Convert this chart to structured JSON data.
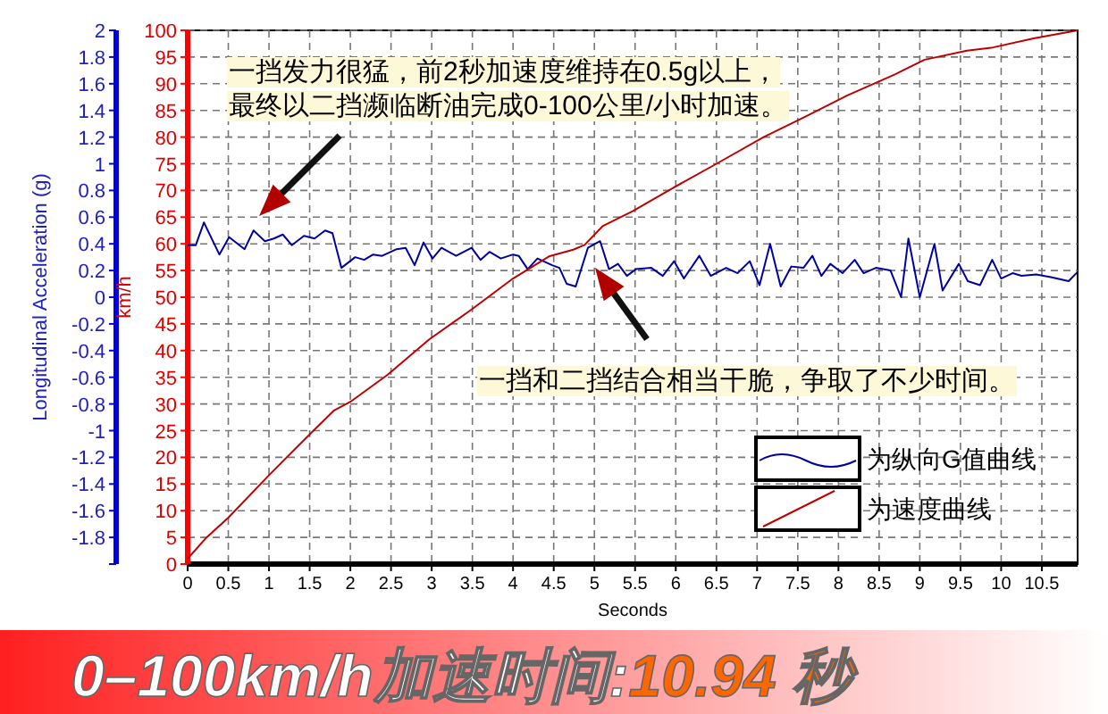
{
  "chart_data": {
    "type": "line",
    "title": "0–100km/h加速时间:*10.94 秒*",
    "xlabel": "Seconds",
    "ylabel": "Longitudinal Acceleration (g)",
    "y2label": "km/h",
    "xlim": [
      0,
      10.94
    ],
    "xticks": [
      0,
      0.5,
      1,
      1.5,
      2,
      2.5,
      3,
      3.5,
      4,
      4.5,
      5,
      5.5,
      6,
      6.5,
      7,
      7.5,
      8,
      8.5,
      9,
      9.5,
      10,
      10.5
    ],
    "ylim": [
      -2,
      2
    ],
    "yticks": [
      {
        "value": -2,
        "label": null
      },
      -1.8,
      -1.6,
      -1.4,
      -1.2,
      -1,
      -0.8,
      -0.6,
      -0.4,
      -0.2,
      0,
      0.2,
      0.4,
      0.6,
      0.8,
      1,
      1.2,
      1.4,
      1.6,
      1.8,
      2
    ],
    "y2lim": [
      0,
      100
    ],
    "y2ticks": [
      0,
      5,
      10,
      15,
      20,
      25,
      30,
      35,
      40,
      45,
      50,
      55,
      60,
      65,
      70,
      75,
      80,
      85,
      90,
      95,
      100
    ],
    "grid": true,
    "legend": "bottom right",
    "marker": "none",
    "line_style": "solid",
    "annotations": [
      "一挡发力很猛，前2秒加速度维持在0.5g以上，",
      "最终以二挡濒临断油完成0-100公里/小时加速。",
      "一挡和二挡结合相当干脆，争取了不少时间。"
    ],
    "series": [
      {
        "name": "为纵向G值曲线",
        "color": "#0000a0",
        "x": [
          0,
          0.1,
          0.2,
          0.39,
          0.51,
          0.7,
          0.81,
          0.95,
          1.06,
          1.17,
          1.28,
          1.43,
          1.56,
          1.69,
          1.78,
          1.89,
          2.06,
          2.17,
          2.28,
          2.39,
          2.57,
          2.68,
          2.79,
          2.9,
          3.01,
          3.12,
          3.3,
          3.49,
          3.6,
          3.71,
          3.85,
          4,
          4.07,
          4.18,
          4.3,
          4.48,
          4.57,
          4.66,
          4.77,
          4.92,
          5.07,
          5.18,
          5.29,
          5.4,
          5.51,
          5.7,
          5.84,
          5.98,
          6.1,
          6.29,
          6.43,
          6.62,
          6.76,
          6.91,
          7.03,
          7.16,
          7.29,
          7.42,
          7.57,
          7.68,
          7.79,
          7.9,
          8.05,
          8.2,
          8.31,
          8.46,
          8.64,
          8.77,
          8.86,
          9,
          9.18,
          9.28,
          9.48,
          9.59,
          9.74,
          9.89,
          10,
          10.14,
          10.25,
          10.43,
          10.61,
          10.83,
          10.94
        ],
        "values": [
          0.39,
          0.39,
          0.56,
          0.32,
          0.45,
          0.36,
          0.5,
          0.42,
          0.44,
          0.47,
          0.39,
          0.46,
          0.44,
          0.5,
          0.48,
          0.22,
          0.3,
          0.28,
          0.32,
          0.31,
          0.36,
          0.37,
          0.24,
          0.41,
          0.29,
          0.37,
          0.31,
          0.37,
          0.28,
          0.34,
          0.29,
          0.32,
          0.31,
          0.21,
          0.29,
          0.24,
          0.22,
          0.1,
          0.08,
          0.37,
          0.42,
          0.21,
          0.25,
          0.16,
          0.21,
          0.22,
          0.16,
          0.27,
          0.14,
          0.31,
          0.16,
          0.22,
          0.18,
          0.27,
          0.09,
          0.4,
          0.08,
          0.23,
          0.22,
          0.31,
          0.16,
          0.25,
          0.18,
          0.28,
          0.18,
          0.22,
          0.2,
          0,
          0.44,
          0,
          0.4,
          0.05,
          0.25,
          0.12,
          0.09,
          0.28,
          0.14,
          0.18,
          0.16,
          0.17,
          0.15,
          0.12,
          0.19
        ]
      },
      {
        "name": "为速度曲线",
        "color": "#c00000",
        "axis": "y2",
        "x": [
          0,
          0.22,
          0.5,
          0.99,
          1.5,
          1.8,
          2,
          2.46,
          2.97,
          3.49,
          4,
          4.45,
          4.74,
          4.88,
          5.1,
          5.47,
          5.98,
          6.5,
          7.08,
          7.6,
          8.11,
          8.7,
          9.06,
          9.58,
          9.9,
          10.4,
          10.94
        ],
        "values": [
          1,
          4.8,
          8.7,
          16.5,
          24.3,
          28.8,
          30.4,
          35.5,
          42.1,
          47.7,
          53.5,
          57.7,
          58.9,
          59.8,
          63.3,
          66.1,
          70.6,
          75,
          80,
          83.9,
          87.8,
          91.8,
          94.5,
          96.2,
          96.8,
          98.5,
          100
        ]
      }
    ]
  }
}
